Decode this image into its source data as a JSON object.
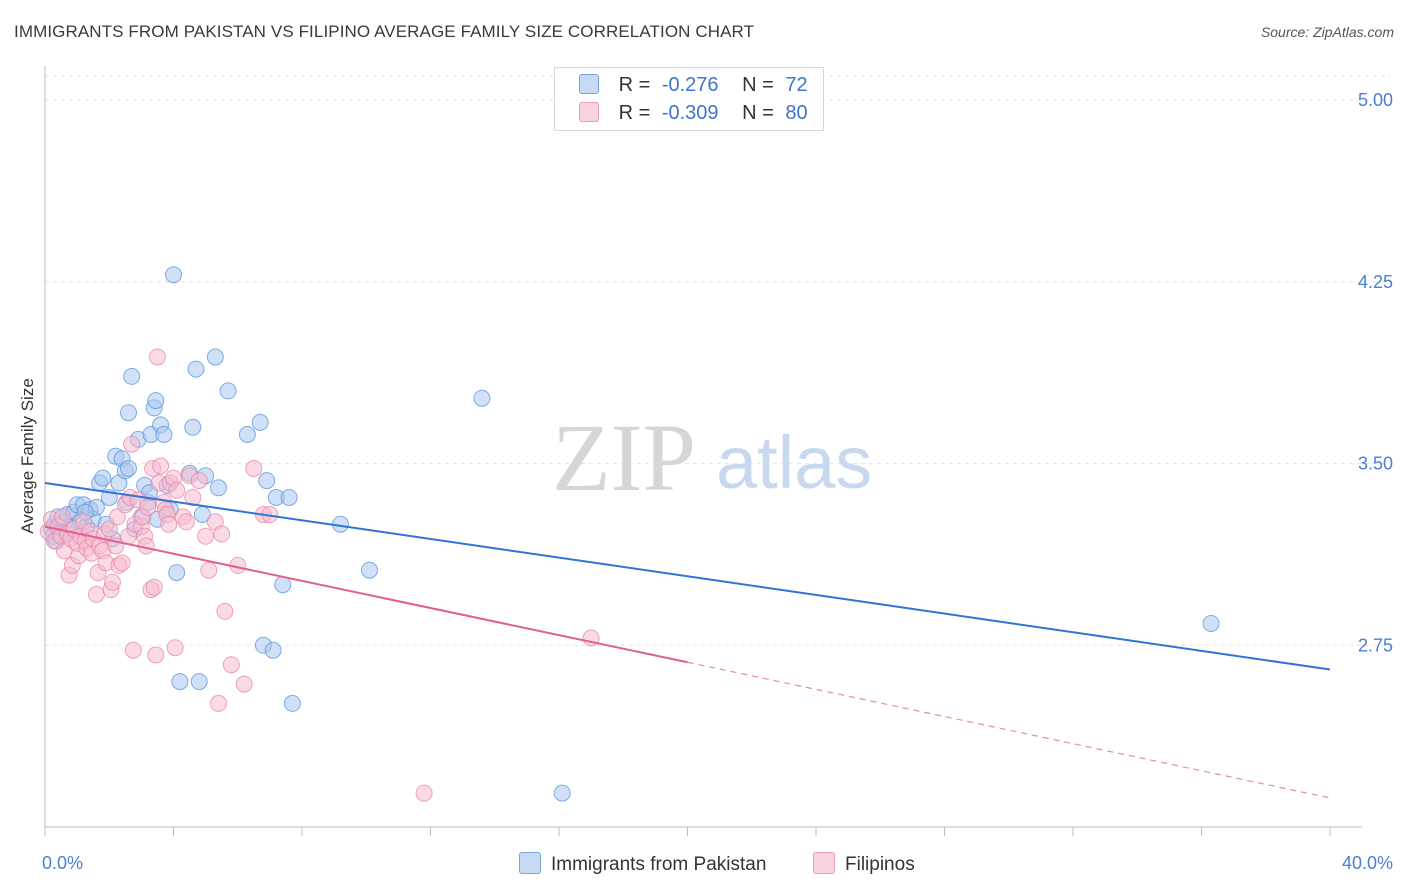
{
  "header": {
    "title": "IMMIGRANTS FROM PAKISTAN VS FILIPINO AVERAGE FAMILY SIZE CORRELATION CHART",
    "source": "Source: ZipAtlas.com"
  },
  "legend": {
    "rows": [
      {
        "r_label": "R =",
        "r_value": "-0.276",
        "n_label": "N =",
        "n_value": "72",
        "color": "#a9c7ef"
      },
      {
        "r_label": "R =",
        "r_value": "-0.309",
        "n_label": "N =",
        "n_value": "80",
        "color": "#f6bcd0"
      }
    ]
  },
  "watermark": {
    "zip": "ZIP",
    "atlas": "atlas"
  },
  "chart_data": {
    "type": "scatter",
    "title": "IMMIGRANTS FROM PAKISTAN VS FILIPINO AVERAGE FAMILY SIZE CORRELATION CHART",
    "xlabel": "",
    "ylabel": "Average Family Size",
    "xlim": [
      0,
      40
    ],
    "ylim": [
      2.0,
      5.1
    ],
    "x_tick_labels": [
      "0.0%",
      "40.0%"
    ],
    "y_ticks": [
      2.75,
      3.5,
      4.25,
      5.0
    ],
    "y_tick_labels": [
      "2.75",
      "3.50",
      "4.25",
      "5.00"
    ],
    "grid": true,
    "series": [
      {
        "name": "Immigrants from Pakistan",
        "color": "#5b93db",
        "fill": "#a9c7ef",
        "trendline": {
          "x0": 0,
          "y0": 3.42,
          "x1": 40,
          "y1": 2.65
        },
        "points": [
          [
            0.2,
            3.23
          ],
          [
            0.3,
            3.25
          ],
          [
            0.4,
            3.28
          ],
          [
            0.5,
            3.22
          ],
          [
            0.6,
            3.26
          ],
          [
            0.7,
            3.29
          ],
          [
            0.8,
            3.24
          ],
          [
            0.9,
            3.3
          ],
          [
            1.0,
            3.33
          ],
          [
            1.1,
            3.26
          ],
          [
            1.2,
            3.33
          ],
          [
            1.3,
            3.24
          ],
          [
            1.4,
            3.31
          ],
          [
            1.5,
            3.27
          ],
          [
            1.6,
            3.32
          ],
          [
            1.7,
            3.42
          ],
          [
            1.8,
            3.44
          ],
          [
            1.9,
            3.25
          ],
          [
            2.0,
            3.36
          ],
          [
            2.1,
            3.19
          ],
          [
            2.2,
            3.53
          ],
          [
            2.3,
            3.42
          ],
          [
            2.4,
            3.52
          ],
          [
            2.5,
            3.47
          ],
          [
            2.6,
            3.48
          ],
          [
            2.6,
            3.71
          ],
          [
            2.7,
            3.86
          ],
          [
            2.8,
            3.23
          ],
          [
            2.9,
            3.6
          ],
          [
            3.0,
            3.28
          ],
          [
            3.1,
            3.41
          ],
          [
            3.2,
            3.34
          ],
          [
            3.3,
            3.62
          ],
          [
            3.4,
            3.73
          ],
          [
            3.45,
            3.76
          ],
          [
            3.5,
            3.27
          ],
          [
            3.6,
            3.66
          ],
          [
            3.7,
            3.62
          ],
          [
            3.8,
            3.41
          ],
          [
            3.9,
            3.31
          ],
          [
            4.0,
            4.28
          ],
          [
            4.1,
            3.05
          ],
          [
            4.2,
            2.6
          ],
          [
            4.5,
            3.46
          ],
          [
            4.6,
            3.65
          ],
          [
            4.7,
            3.89
          ],
          [
            4.8,
            2.6
          ],
          [
            4.9,
            3.29
          ],
          [
            5.0,
            3.45
          ],
          [
            5.3,
            3.94
          ],
          [
            5.4,
            3.4
          ],
          [
            5.7,
            3.8
          ],
          [
            6.3,
            3.62
          ],
          [
            6.7,
            3.67
          ],
          [
            6.8,
            2.75
          ],
          [
            6.9,
            3.43
          ],
          [
            7.1,
            2.73
          ],
          [
            7.2,
            3.36
          ],
          [
            7.4,
            3.0
          ],
          [
            7.6,
            3.36
          ],
          [
            7.7,
            2.51
          ],
          [
            9.2,
            3.25
          ],
          [
            10.1,
            3.06
          ],
          [
            13.6,
            3.77
          ],
          [
            16.1,
            2.14
          ],
          [
            36.3,
            2.84
          ],
          [
            0.25,
            3.2
          ],
          [
            0.35,
            3.18
          ],
          [
            0.45,
            3.21
          ],
          [
            1.25,
            3.3
          ],
          [
            2.55,
            3.34
          ],
          [
            3.25,
            3.38
          ]
        ]
      },
      {
        "name": "Filipinos",
        "color": "#e985a8",
        "fill": "#f6bcd0",
        "trendline": {
          "x0": 0,
          "y0": 3.24,
          "x1": 20,
          "y1": 2.68,
          "dashed_to": {
            "x": 40,
            "y": 2.12
          }
        },
        "points": [
          [
            0.1,
            3.22
          ],
          [
            0.2,
            3.27
          ],
          [
            0.3,
            3.18
          ],
          [
            0.4,
            3.24
          ],
          [
            0.5,
            3.2
          ],
          [
            0.55,
            3.28
          ],
          [
            0.6,
            3.14
          ],
          [
            0.7,
            3.21
          ],
          [
            0.75,
            3.04
          ],
          [
            0.8,
            3.19
          ],
          [
            0.85,
            3.08
          ],
          [
            0.9,
            3.23
          ],
          [
            1.0,
            3.17
          ],
          [
            1.05,
            3.12
          ],
          [
            1.1,
            3.2
          ],
          [
            1.2,
            3.26
          ],
          [
            1.25,
            3.18
          ],
          [
            1.3,
            3.15
          ],
          [
            1.4,
            3.22
          ],
          [
            1.45,
            3.13
          ],
          [
            1.5,
            3.19
          ],
          [
            1.6,
            2.96
          ],
          [
            1.65,
            3.05
          ],
          [
            1.7,
            3.16
          ],
          [
            1.8,
            3.14
          ],
          [
            1.85,
            3.21
          ],
          [
            1.9,
            3.09
          ],
          [
            2.0,
            3.23
          ],
          [
            2.05,
            2.98
          ],
          [
            2.1,
            3.01
          ],
          [
            2.2,
            3.16
          ],
          [
            2.25,
            3.28
          ],
          [
            2.3,
            3.08
          ],
          [
            2.4,
            3.09
          ],
          [
            2.5,
            3.33
          ],
          [
            2.6,
            3.2
          ],
          [
            2.65,
            3.36
          ],
          [
            2.7,
            3.58
          ],
          [
            2.75,
            2.73
          ],
          [
            2.8,
            3.25
          ],
          [
            2.9,
            3.35
          ],
          [
            3.0,
            3.24
          ],
          [
            3.05,
            3.28
          ],
          [
            3.1,
            3.2
          ],
          [
            3.15,
            3.16
          ],
          [
            3.2,
            3.32
          ],
          [
            3.3,
            2.98
          ],
          [
            3.35,
            3.48
          ],
          [
            3.4,
            2.99
          ],
          [
            3.45,
            2.71
          ],
          [
            3.5,
            3.94
          ],
          [
            3.55,
            3.42
          ],
          [
            3.6,
            3.49
          ],
          [
            3.7,
            3.34
          ],
          [
            3.75,
            3.31
          ],
          [
            3.8,
            3.29
          ],
          [
            3.85,
            3.25
          ],
          [
            3.9,
            3.42
          ],
          [
            4.0,
            3.44
          ],
          [
            4.1,
            3.39
          ],
          [
            4.3,
            3.28
          ],
          [
            4.4,
            3.26
          ],
          [
            4.5,
            3.45
          ],
          [
            4.6,
            3.36
          ],
          [
            4.8,
            3.43
          ],
          [
            5.0,
            3.2
          ],
          [
            5.1,
            3.06
          ],
          [
            5.3,
            3.26
          ],
          [
            5.5,
            3.21
          ],
          [
            5.6,
            2.89
          ],
          [
            5.8,
            2.67
          ],
          [
            6.0,
            3.08
          ],
          [
            6.2,
            2.59
          ],
          [
            6.5,
            3.48
          ],
          [
            6.8,
            3.29
          ],
          [
            7.0,
            3.29
          ],
          [
            5.4,
            2.51
          ],
          [
            17.0,
            2.78
          ],
          [
            11.8,
            2.14
          ],
          [
            4.05,
            2.74
          ]
        ]
      }
    ]
  },
  "bottom_legend": [
    {
      "label": "Immigrants from Pakistan",
      "color": "#a9c7ef"
    },
    {
      "label": "Filipinos",
      "color": "#f6bcd0"
    }
  ]
}
